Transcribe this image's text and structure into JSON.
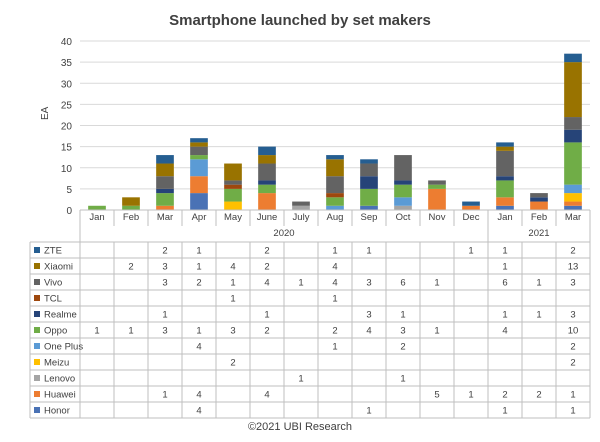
{
  "chart_data": {
    "type": "bar",
    "stacked": true,
    "title": "Smartphone launched by set makers",
    "ylabel": "EA",
    "ylim": [
      0,
      40
    ],
    "yticks": [
      0,
      5,
      10,
      15,
      20,
      25,
      30,
      35,
      40
    ],
    "grid": true,
    "categories": [
      "Jan",
      "Feb",
      "Mar",
      "Apr",
      "May",
      "June",
      "July",
      "Aug",
      "Sep",
      "Oct",
      "Nov",
      "Dec",
      "Jan",
      "Feb",
      "Mar"
    ],
    "year_groups": [
      {
        "label": "2020",
        "start": 0,
        "end": 11
      },
      {
        "label": "2021",
        "start": 12,
        "end": 14
      }
    ],
    "series": [
      {
        "name": "Honor",
        "color": "#4a72b5",
        "values": [
          null,
          null,
          null,
          4,
          null,
          null,
          null,
          null,
          1,
          null,
          null,
          null,
          1,
          null,
          1
        ]
      },
      {
        "name": "Huawei",
        "color": "#ed7d31",
        "values": [
          null,
          null,
          1,
          4,
          null,
          4,
          null,
          null,
          null,
          null,
          5,
          1,
          2,
          2,
          1
        ]
      },
      {
        "name": "Lenovo",
        "color": "#a5a5a5",
        "values": [
          null,
          null,
          null,
          null,
          null,
          null,
          1,
          null,
          null,
          1,
          null,
          null,
          null,
          null,
          null
        ]
      },
      {
        "name": "Meizu",
        "color": "#ffc000",
        "values": [
          null,
          null,
          null,
          null,
          2,
          null,
          null,
          null,
          null,
          null,
          null,
          null,
          null,
          null,
          2
        ]
      },
      {
        "name": "One Plus",
        "color": "#5b9bd5",
        "values": [
          null,
          null,
          null,
          4,
          null,
          null,
          null,
          1,
          null,
          2,
          null,
          null,
          null,
          null,
          2
        ]
      },
      {
        "name": "Oppo",
        "color": "#70ad47",
        "values": [
          1,
          1,
          3,
          1,
          3,
          2,
          null,
          2,
          4,
          3,
          1,
          null,
          4,
          null,
          10
        ]
      },
      {
        "name": "Realme",
        "color": "#264478",
        "values": [
          null,
          null,
          1,
          null,
          null,
          1,
          null,
          null,
          3,
          1,
          null,
          null,
          1,
          1,
          3
        ]
      },
      {
        "name": "TCL",
        "color": "#9e480e",
        "values": [
          null,
          null,
          null,
          null,
          1,
          null,
          null,
          1,
          null,
          null,
          null,
          null,
          null,
          null,
          null
        ]
      },
      {
        "name": "Vivo",
        "color": "#636363",
        "values": [
          null,
          null,
          3,
          2,
          1,
          4,
          1,
          4,
          3,
          6,
          1,
          null,
          6,
          1,
          3
        ]
      },
      {
        "name": "Xiaomi",
        "color": "#997300",
        "values": [
          null,
          2,
          3,
          1,
          4,
          2,
          null,
          4,
          null,
          null,
          null,
          null,
          1,
          null,
          13
        ]
      },
      {
        "name": "ZTE",
        "color": "#255e91",
        "values": [
          null,
          null,
          2,
          1,
          null,
          2,
          null,
          1,
          1,
          null,
          null,
          1,
          1,
          null,
          2
        ]
      }
    ],
    "table_row_order": [
      "ZTE",
      "Xiaomi",
      "Vivo",
      "TCL",
      "Realme",
      "Oppo",
      "One Plus",
      "Meizu",
      "Lenovo",
      "Huawei",
      "Honor"
    ]
  },
  "footer": {
    "source": "©2021 UBI Research"
  }
}
